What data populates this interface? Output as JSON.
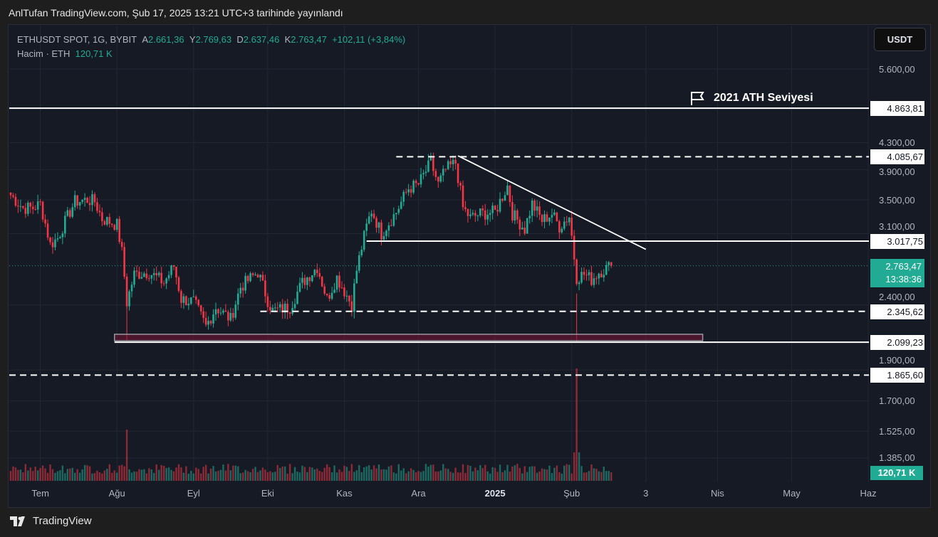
{
  "published": "AnlTufan TradingView.com, Şub 17, 2025 13:21 UTC+3 tarihinde yayınlandı",
  "legend": {
    "symbol": "ETHUSDT SPOT, 1G, BYBIT",
    "open_label": "A",
    "open": "2.661,36",
    "high_label": "Y",
    "high": "2.769,63",
    "low_label": "D",
    "low": "2.637,46",
    "close_label": "K",
    "close": "2.763,47",
    "change": "+102,11 (+3,84%)",
    "volume_label": "Hacim · ETH",
    "volume": "120,71 K"
  },
  "currency_button": "USDT",
  "annotation": {
    "label": "2021 ATH Seviyesi",
    "icon": "flag-icon"
  },
  "price_tag": {
    "price": "2.763,47",
    "countdown": "13:38:36"
  },
  "volume_tag": "120,71 K",
  "footer_logo": "TradingView",
  "colors": {
    "up": "#22ab94",
    "down": "#f23645",
    "bg": "#161a25"
  },
  "chart_data": {
    "type": "candlestick",
    "title": "ETHUSDT SPOT, 1G, BYBIT",
    "yscale": "log",
    "y_ticks": [
      {
        "v": 5600,
        "label": "5.600,00"
      },
      {
        "v": 4300,
        "label": "4.300,00"
      },
      {
        "v": 3900,
        "label": "3.900,00"
      },
      {
        "v": 3500,
        "label": "3.500,00"
      },
      {
        "v": 3100,
        "label": "3.100,00"
      },
      {
        "v": 2400,
        "label": "2.400,00"
      },
      {
        "v": 1900,
        "label": "1.900,00"
      },
      {
        "v": 1700,
        "label": "1.700,00"
      },
      {
        "v": 1525,
        "label": "1.525,00"
      },
      {
        "v": 1385,
        "label": "1.385,00"
      }
    ],
    "x_ticks": [
      {
        "day": 12,
        "label": "Tem"
      },
      {
        "day": 43,
        "label": "Ağu"
      },
      {
        "day": 74,
        "label": "Eyl"
      },
      {
        "day": 104,
        "label": "Eki"
      },
      {
        "day": 135,
        "label": "Kas"
      },
      {
        "day": 165,
        "label": "Ara"
      },
      {
        "day": 196,
        "label": "2025",
        "bold": true
      },
      {
        "day": 227,
        "label": "Şub"
      },
      {
        "day": 257,
        "label": "3"
      },
      {
        "day": 286,
        "label": "Nis"
      },
      {
        "day": 316,
        "label": "May"
      },
      {
        "day": 347,
        "label": "Haz"
      }
    ],
    "levels": [
      {
        "value": 4863.81,
        "label": "4.863,81",
        "style": "solid",
        "from_day": 0
      },
      {
        "value": 4085.67,
        "label": "4.085,67",
        "style": "dashed",
        "from_day": 156
      },
      {
        "value": 3017.75,
        "label": "3.017,75",
        "style": "solid",
        "from_day": 144
      },
      {
        "value": 2345.62,
        "label": "2.345,62",
        "style": "dashed",
        "from_day": 101
      },
      {
        "value": 2099.23,
        "label": "2.099,23",
        "style": "solid",
        "from_day": 42
      },
      {
        "value": 1865.6,
        "label": "1.865,60",
        "style": "dashed",
        "from_day": 0
      }
    ],
    "trendline": {
      "from": {
        "day": 181,
        "value": 4100
      },
      "to": {
        "day": 257,
        "value": 2930
      }
    },
    "zone": {
      "from_day": 42,
      "to_day": 280,
      "low": 2110,
      "high": 2160
    },
    "closes_keypoints": [
      [
        0,
        3560
      ],
      [
        5,
        3400
      ],
      [
        9,
        3400
      ],
      [
        12,
        3450
      ],
      [
        16,
        2980
      ],
      [
        19,
        3050
      ],
      [
        26,
        3480
      ],
      [
        31,
        3500
      ],
      [
        34,
        3480
      ],
      [
        37,
        3270
      ],
      [
        43,
        3200
      ],
      [
        45,
        2900
      ],
      [
        47,
        2420
      ],
      [
        50,
        2680
      ],
      [
        56,
        2700
      ],
      [
        62,
        2600
      ],
      [
        66,
        2760
      ],
      [
        69,
        2450
      ],
      [
        74,
        2430
      ],
      [
        79,
        2220
      ],
      [
        83,
        2380
      ],
      [
        89,
        2280
      ],
      [
        93,
        2560
      ],
      [
        100,
        2700
      ],
      [
        104,
        2440
      ],
      [
        106,
        2350
      ],
      [
        113,
        2380
      ],
      [
        118,
        2600
      ],
      [
        124,
        2750
      ],
      [
        128,
        2450
      ],
      [
        132,
        2650
      ],
      [
        138,
        2400
      ],
      [
        140,
        2720
      ],
      [
        144,
        3180
      ],
      [
        146,
        3370
      ],
      [
        150,
        3100
      ],
      [
        156,
        3350
      ],
      [
        161,
        3650
      ],
      [
        165,
        3700
      ],
      [
        170,
        4000
      ],
      [
        173,
        3700
      ],
      [
        176,
        3900
      ],
      [
        180,
        4000
      ],
      [
        183,
        3400
      ],
      [
        186,
        3280
      ],
      [
        190,
        3330
      ],
      [
        196,
        3350
      ],
      [
        201,
        3680
      ],
      [
        203,
        3330
      ],
      [
        208,
        3150
      ],
      [
        211,
        3450
      ],
      [
        215,
        3250
      ],
      [
        219,
        3330
      ],
      [
        222,
        3180
      ],
      [
        226,
        3300
      ],
      [
        228,
        2850
      ],
      [
        229,
        2650
      ],
      [
        232,
        2680
      ],
      [
        235,
        2630
      ],
      [
        238,
        2700
      ],
      [
        243,
        2763
      ]
    ]
  }
}
